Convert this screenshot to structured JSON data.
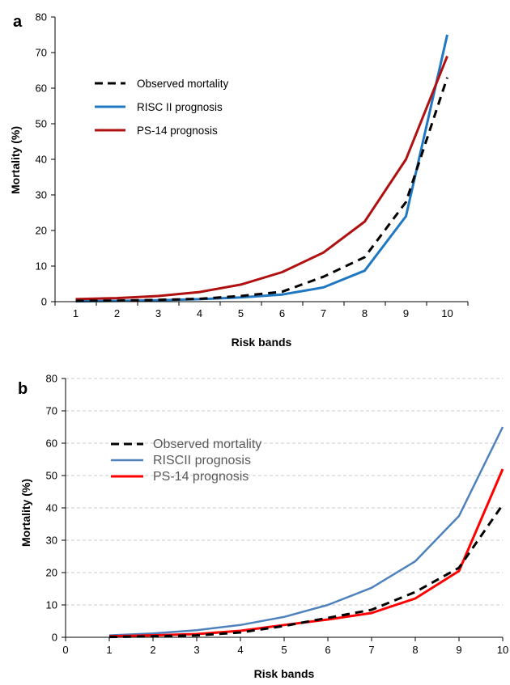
{
  "chart_data": [
    {
      "panel": "a",
      "type": "line",
      "xlabel": "Risk bands",
      "ylabel": "Mortality (%)",
      "x": [
        1,
        2,
        3,
        4,
        5,
        6,
        7,
        8,
        9,
        10
      ],
      "xlim": [
        0.5,
        10.5
      ],
      "ylim": [
        0,
        80
      ],
      "y_ticks": [
        0,
        10,
        20,
        30,
        40,
        50,
        60,
        70,
        80
      ],
      "x_ticks": [
        1,
        2,
        3,
        4,
        5,
        6,
        7,
        8,
        9,
        10
      ],
      "grid": false,
      "legend_position": "top-left",
      "series": [
        {
          "name": "Observed mortality",
          "color": "#000000",
          "dashed": true,
          "values": [
            0.2,
            0.3,
            0.5,
            0.8,
            1.6,
            2.8,
            7.0,
            12.5,
            28.0,
            63.0
          ]
        },
        {
          "name": "RISC II prognosis",
          "color": "#1f78c1",
          "dashed": false,
          "values": [
            0.1,
            0.2,
            0.4,
            0.7,
            1.2,
            2.0,
            4.0,
            8.7,
            24.0,
            75.0
          ]
        },
        {
          "name": "PS-14 prognosis",
          "color": "#b01010",
          "dashed": false,
          "values": [
            0.7,
            1.0,
            1.6,
            2.7,
            4.8,
            8.3,
            13.8,
            22.5,
            40.0,
            69.0
          ]
        }
      ]
    },
    {
      "panel": "b",
      "type": "line",
      "xlabel": "Risk bands",
      "ylabel": "Mortality (%)",
      "x": [
        1,
        2,
        3,
        4,
        5,
        6,
        7,
        8,
        9,
        10
      ],
      "xlim": [
        0,
        10
      ],
      "ylim": [
        0,
        80
      ],
      "y_ticks": [
        0,
        10,
        20,
        30,
        40,
        50,
        60,
        70,
        80
      ],
      "x_ticks": [
        0,
        1,
        2,
        3,
        4,
        5,
        6,
        7,
        8,
        9,
        10
      ],
      "grid": true,
      "legend_position": "top-left",
      "series": [
        {
          "name": "Observed mortality",
          "color": "#000000",
          "dashed": true,
          "values": [
            0.1,
            0.3,
            0.6,
            1.5,
            3.5,
            6.0,
            8.5,
            14.0,
            21.5,
            41.0
          ]
        },
        {
          "name": "RISCII prognosis",
          "color": "#4f81bd",
          "dashed": false,
          "values": [
            0.6,
            1.2,
            2.2,
            3.8,
            6.3,
            10.0,
            15.3,
            23.5,
            37.5,
            65.0
          ]
        },
        {
          "name": "PS-14  prognosis",
          "color": "#ff0000",
          "dashed": false,
          "values": [
            0.3,
            0.6,
            1.0,
            2.0,
            3.8,
            5.5,
            7.5,
            12.0,
            20.5,
            52.0
          ]
        }
      ]
    }
  ]
}
